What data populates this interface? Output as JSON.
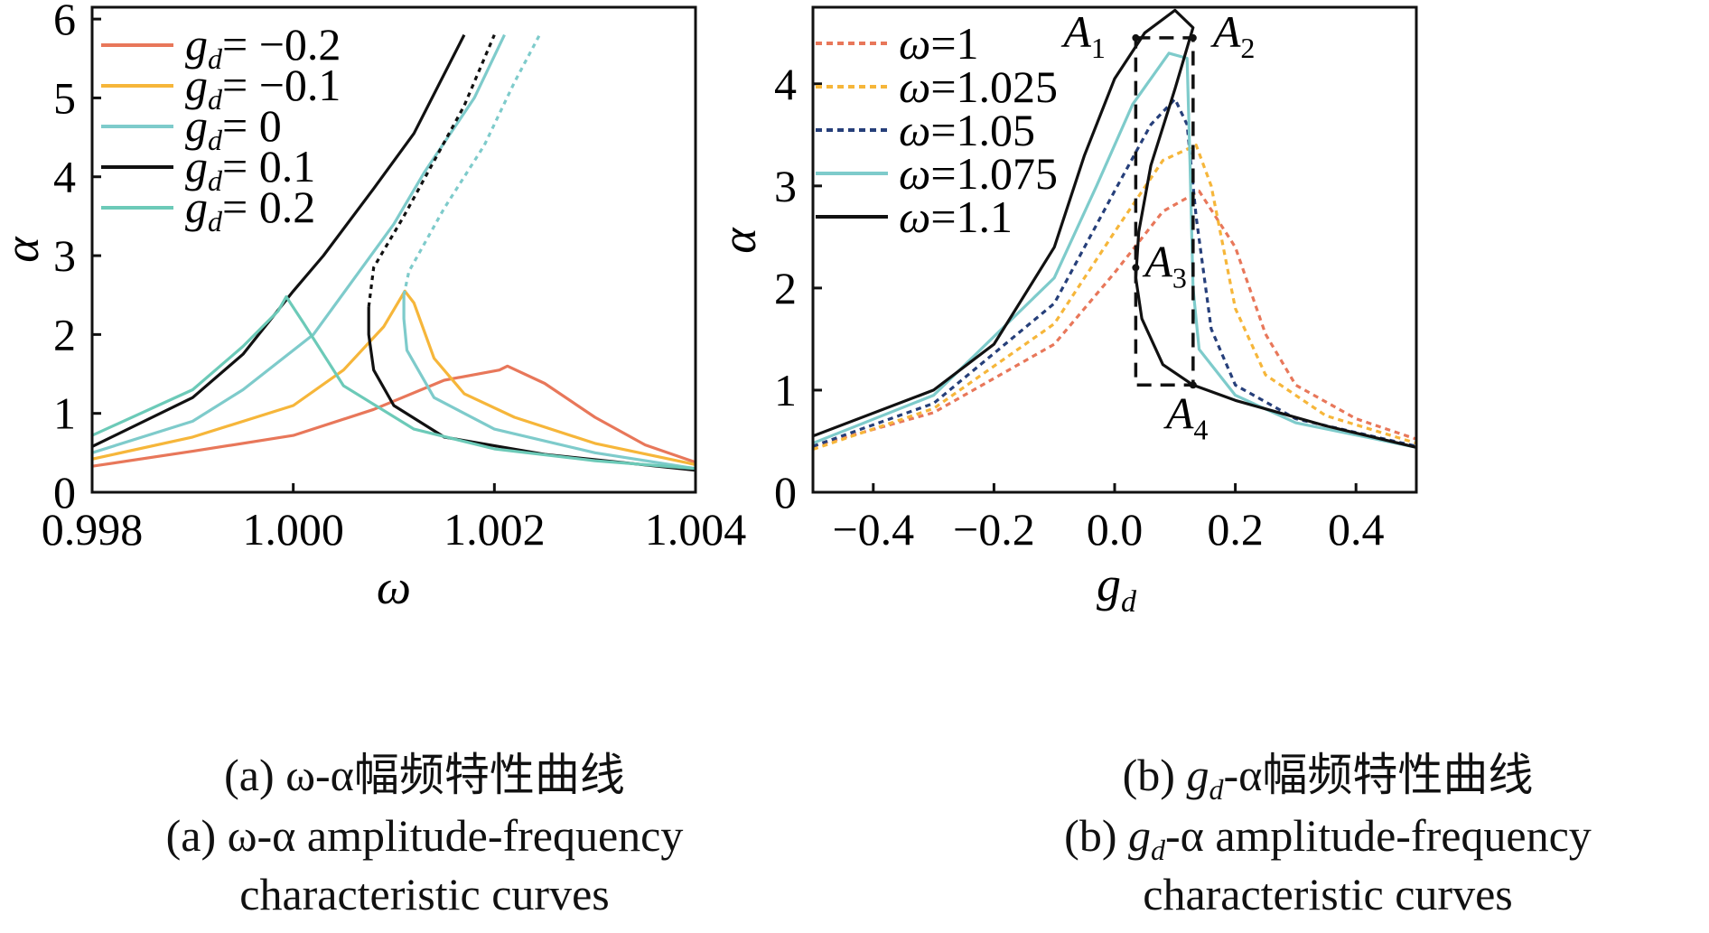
{
  "panel_a": {
    "caption_cn": "(a) ω-α幅频特性曲线",
    "caption_en_1": "(a) ω-α amplitude-frequency",
    "caption_en_2": "characteristic curves"
  },
  "panel_b": {
    "caption_cn_prefix": "(b) ",
    "caption_cn_suffix": "-α幅频特性曲线",
    "caption_en_prefix": "(b) ",
    "caption_en_suffix": "-α amplitude-frequency",
    "caption_en_2": "characteristic curves",
    "gd_symbol": "g",
    "gd_sub": "d"
  },
  "chart_data": [
    {
      "type": "line",
      "xlabel": "ω",
      "ylabel": "α",
      "xlim": [
        0.998,
        1.004
      ],
      "ylim": [
        0,
        6.15
      ],
      "x_ticks": [
        "0.998",
        "1.000",
        "1.002",
        "1.004"
      ],
      "y_ticks": [
        "0",
        "1",
        "2",
        "3",
        "4",
        "5",
        "6"
      ],
      "legend_position": "top-left",
      "series": [
        {
          "name": "g_d = −0.2",
          "label_rhs": "= −0.2",
          "color": "#e8775a",
          "stable": [
            [
              0.998,
              0.33
            ],
            [
              0.999,
              0.52
            ],
            [
              1.0,
              0.72
            ],
            [
              1.0008,
              1.05
            ],
            [
              1.0015,
              1.42
            ],
            [
              1.00205,
              1.55
            ],
            [
              1.00213,
              1.6
            ],
            [
              1.0025,
              1.38
            ],
            [
              1.003,
              0.95
            ],
            [
              1.0035,
              0.6
            ],
            [
              1.004,
              0.38
            ]
          ],
          "unstable": []
        },
        {
          "name": "g_d = −0.1",
          "label_rhs": "= −0.1",
          "color": "#f6b63a",
          "stable": [
            [
              0.998,
              0.42
            ],
            [
              0.999,
              0.7
            ],
            [
              1.0,
              1.1
            ],
            [
              1.0005,
              1.55
            ],
            [
              1.0009,
              2.1
            ],
            [
              1.00111,
              2.55
            ],
            [
              1.0012,
              2.4
            ],
            [
              1.0014,
              1.7
            ],
            [
              1.0017,
              1.25
            ],
            [
              1.0022,
              0.95
            ],
            [
              1.003,
              0.62
            ],
            [
              1.004,
              0.35
            ]
          ],
          "unstable": []
        },
        {
          "name": "g_d = 0",
          "label_rhs": "= 0",
          "color": "#7ecbcb",
          "stable_segments": [
            [
              [
                0.998,
                0.5
              ],
              [
                0.999,
                0.9
              ],
              [
                0.9995,
                1.3
              ],
              [
                1.0002,
                2.0
              ],
              [
                1.0006,
                2.7
              ],
              [
                1.001,
                3.4
              ],
              [
                1.0013,
                4.05
              ],
              [
                1.0018,
                5.0
              ],
              [
                1.0021,
                5.8
              ]
            ],
            [
              [
                1.0011,
                2.5
              ],
              [
                1.0011,
                2.2
              ],
              [
                1.00113,
                1.8
              ],
              [
                1.0014,
                1.2
              ],
              [
                1.002,
                0.8
              ],
              [
                1.003,
                0.5
              ],
              [
                1.004,
                0.3
              ]
            ]
          ],
          "unstable": [
            [
              1.0011,
              2.5
            ],
            [
              1.00115,
              2.8
            ],
            [
              1.0015,
              3.6
            ],
            [
              1.0019,
              4.4
            ],
            [
              1.0022,
              5.2
            ],
            [
              1.00245,
              5.8
            ]
          ]
        },
        {
          "name": "g_d = 0.1",
          "label_rhs": "= 0.1",
          "color": "#111111",
          "stable_segments": [
            [
              [
                0.998,
                0.58
              ],
              [
                0.999,
                1.2
              ],
              [
                0.9995,
                1.75
              ],
              [
                1.0,
                2.55
              ],
              [
                1.0003,
                3.0
              ],
              [
                1.0008,
                3.85
              ],
              [
                1.0012,
                4.55
              ],
              [
                1.0017,
                5.8
              ]
            ],
            [
              [
                1.00075,
                2.35
              ],
              [
                1.00075,
                2.0
              ],
              [
                1.0008,
                1.55
              ],
              [
                1.001,
                1.1
              ],
              [
                1.0015,
                0.7
              ],
              [
                1.0025,
                0.48
              ],
              [
                1.004,
                0.28
              ]
            ]
          ],
          "unstable": [
            [
              1.00075,
              2.35
            ],
            [
              1.0008,
              2.85
            ],
            [
              1.0011,
              3.5
            ],
            [
              1.0014,
              4.2
            ],
            [
              1.0017,
              4.9
            ],
            [
              1.002,
              5.8
            ]
          ]
        },
        {
          "name": "g_d = 0.2",
          "label_rhs": "= 0.2",
          "color": "#6ccab8",
          "stable": [
            [
              0.998,
              0.72
            ],
            [
              0.999,
              1.3
            ],
            [
              0.9995,
              1.85
            ],
            [
              0.99985,
              2.3
            ],
            [
              0.99993,
              2.48
            ],
            [
              1.0001,
              2.15
            ],
            [
              1.0005,
              1.35
            ],
            [
              1.0012,
              0.8
            ],
            [
              1.002,
              0.55
            ],
            [
              1.003,
              0.4
            ],
            [
              1.004,
              0.3
            ]
          ],
          "unstable": []
        }
      ]
    },
    {
      "type": "line",
      "xlabel": "g_d",
      "ylabel": "α",
      "xlim": [
        -0.5,
        0.5
      ],
      "ylim": [
        0,
        4.75
      ],
      "x_ticks": [
        "−0.4",
        "−0.2",
        "0.0",
        "0.2",
        "0.4"
      ],
      "y_ticks": [
        "0",
        "1",
        "2",
        "3",
        "4"
      ],
      "legend_position": "top-left",
      "series": [
        {
          "name": "ω=1",
          "color": "#e8775a",
          "dashed": true,
          "points": [
            [
              -0.5,
              0.45
            ],
            [
              -0.3,
              0.78
            ],
            [
              -0.1,
              1.45
            ],
            [
              0.0,
              2.15
            ],
            [
              0.08,
              2.75
            ],
            [
              0.14,
              2.95
            ],
            [
              0.2,
              2.4
            ],
            [
              0.25,
              1.55
            ],
            [
              0.3,
              1.05
            ],
            [
              0.4,
              0.72
            ],
            [
              0.5,
              0.52
            ]
          ]
        },
        {
          "name": "ω=1.025",
          "color": "#f6b63a",
          "dashed": true,
          "points": [
            [
              -0.5,
              0.42
            ],
            [
              -0.3,
              0.82
            ],
            [
              -0.1,
              1.65
            ],
            [
              0.0,
              2.55
            ],
            [
              0.08,
              3.25
            ],
            [
              0.135,
              3.4
            ],
            [
              0.16,
              3.0
            ],
            [
              0.2,
              1.8
            ],
            [
              0.25,
              1.15
            ],
            [
              0.35,
              0.75
            ],
            [
              0.5,
              0.48
            ]
          ]
        },
        {
          "name": "ω=1.05",
          "color": "#263f7a",
          "dashed": true,
          "points": [
            [
              -0.5,
              0.45
            ],
            [
              -0.3,
              0.87
            ],
            [
              -0.1,
              1.85
            ],
            [
              0.0,
              2.95
            ],
            [
              0.06,
              3.6
            ],
            [
              0.1,
              3.85
            ],
            [
              0.12,
              3.6
            ],
            [
              0.135,
              2.7
            ],
            [
              0.16,
              1.6
            ],
            [
              0.2,
              1.05
            ],
            [
              0.3,
              0.72
            ],
            [
              0.5,
              0.45
            ]
          ]
        },
        {
          "name": "ω=1.075",
          "color": "#7ecbcb",
          "dashed": false,
          "points": [
            [
              -0.5,
              0.48
            ],
            [
              -0.3,
              0.95
            ],
            [
              -0.1,
              2.1
            ],
            [
              -0.03,
              3.0
            ],
            [
              0.03,
              3.8
            ],
            [
              0.09,
              4.3
            ],
            [
              0.12,
              4.25
            ],
            [
              0.125,
              3.2
            ],
            [
              0.13,
              2.0
            ],
            [
              0.14,
              1.4
            ],
            [
              0.2,
              0.95
            ],
            [
              0.3,
              0.68
            ],
            [
              0.5,
              0.44
            ]
          ]
        },
        {
          "name": "ω=1.1",
          "color": "#111111",
          "dashed": false,
          "points": [
            [
              -0.5,
              0.55
            ],
            [
              -0.3,
              1.0
            ],
            [
              -0.2,
              1.45
            ],
            [
              -0.1,
              2.4
            ],
            [
              -0.05,
              3.3
            ],
            [
              0.0,
              4.05
            ],
            [
              0.05,
              4.5
            ],
            [
              0.1,
              4.72
            ],
            [
              0.13,
              4.55
            ],
            [
              0.1,
              3.95
            ],
            [
              0.06,
              3.2
            ],
            [
              0.04,
              2.55
            ],
            [
              0.035,
              2.1
            ],
            [
              0.045,
              1.7
            ],
            [
              0.08,
              1.25
            ],
            [
              0.13,
              1.05
            ],
            [
              0.2,
              0.9
            ],
            [
              0.35,
              0.65
            ],
            [
              0.5,
              0.44
            ]
          ]
        }
      ],
      "annotations": [
        {
          "label": "A",
          "sub": "1",
          "x": 0.035,
          "y": 4.45
        },
        {
          "label": "A",
          "sub": "2",
          "x": 0.13,
          "y": 4.45
        },
        {
          "label": "A",
          "sub": "3",
          "x": 0.035,
          "y": 2.2
        },
        {
          "label": "A",
          "sub": "4",
          "x": 0.13,
          "y": 1.05
        }
      ],
      "dashed_box": {
        "x": [
          0.035,
          0.13
        ],
        "y": [
          1.05,
          4.45
        ]
      }
    }
  ]
}
